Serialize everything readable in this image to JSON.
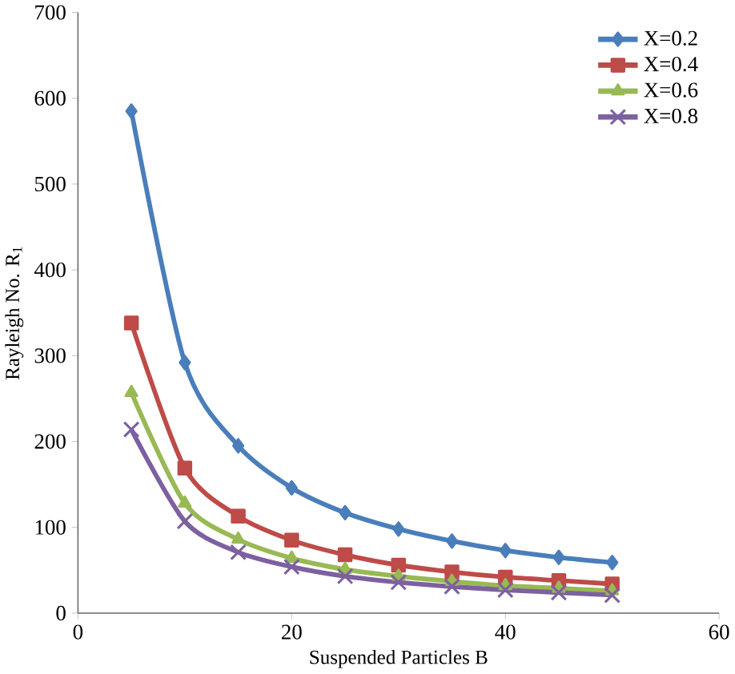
{
  "chart_data": {
    "type": "line",
    "xlabel": "Suspended Particles B",
    "ylabel": "Rayleigh No. R$_{1}$",
    "x": [
      5,
      10,
      15,
      20,
      25,
      30,
      35,
      40,
      45,
      50
    ],
    "series": [
      {
        "name": "X=0.2",
        "color": "#4a7ebb",
        "marker": "diamond",
        "values": [
          585,
          292,
          195,
          146,
          117,
          98,
          84,
          73,
          65,
          59
        ]
      },
      {
        "name": "X=0.4",
        "color": "#be4b48",
        "marker": "square",
        "values": [
          338,
          169,
          113,
          85,
          68,
          56,
          48,
          42,
          38,
          34
        ]
      },
      {
        "name": "X=0.6",
        "color": "#98b954",
        "marker": "triangle",
        "values": [
          257,
          128,
          86,
          64,
          51,
          43,
          37,
          32,
          29,
          26
        ]
      },
      {
        "name": "X=0.8",
        "color": "#7d60a0",
        "marker": "cross",
        "values": [
          214,
          107,
          71,
          54,
          43,
          36,
          31,
          27,
          24,
          21
        ]
      }
    ],
    "xlim": [
      0,
      60
    ],
    "xticks": [
      0,
      20,
      40,
      60
    ],
    "ylim": [
      0,
      700
    ],
    "yticks": [
      0,
      100,
      200,
      300,
      400,
      500,
      600,
      700
    ],
    "grid": false,
    "legend": "top right",
    "line_style": "solid"
  }
}
